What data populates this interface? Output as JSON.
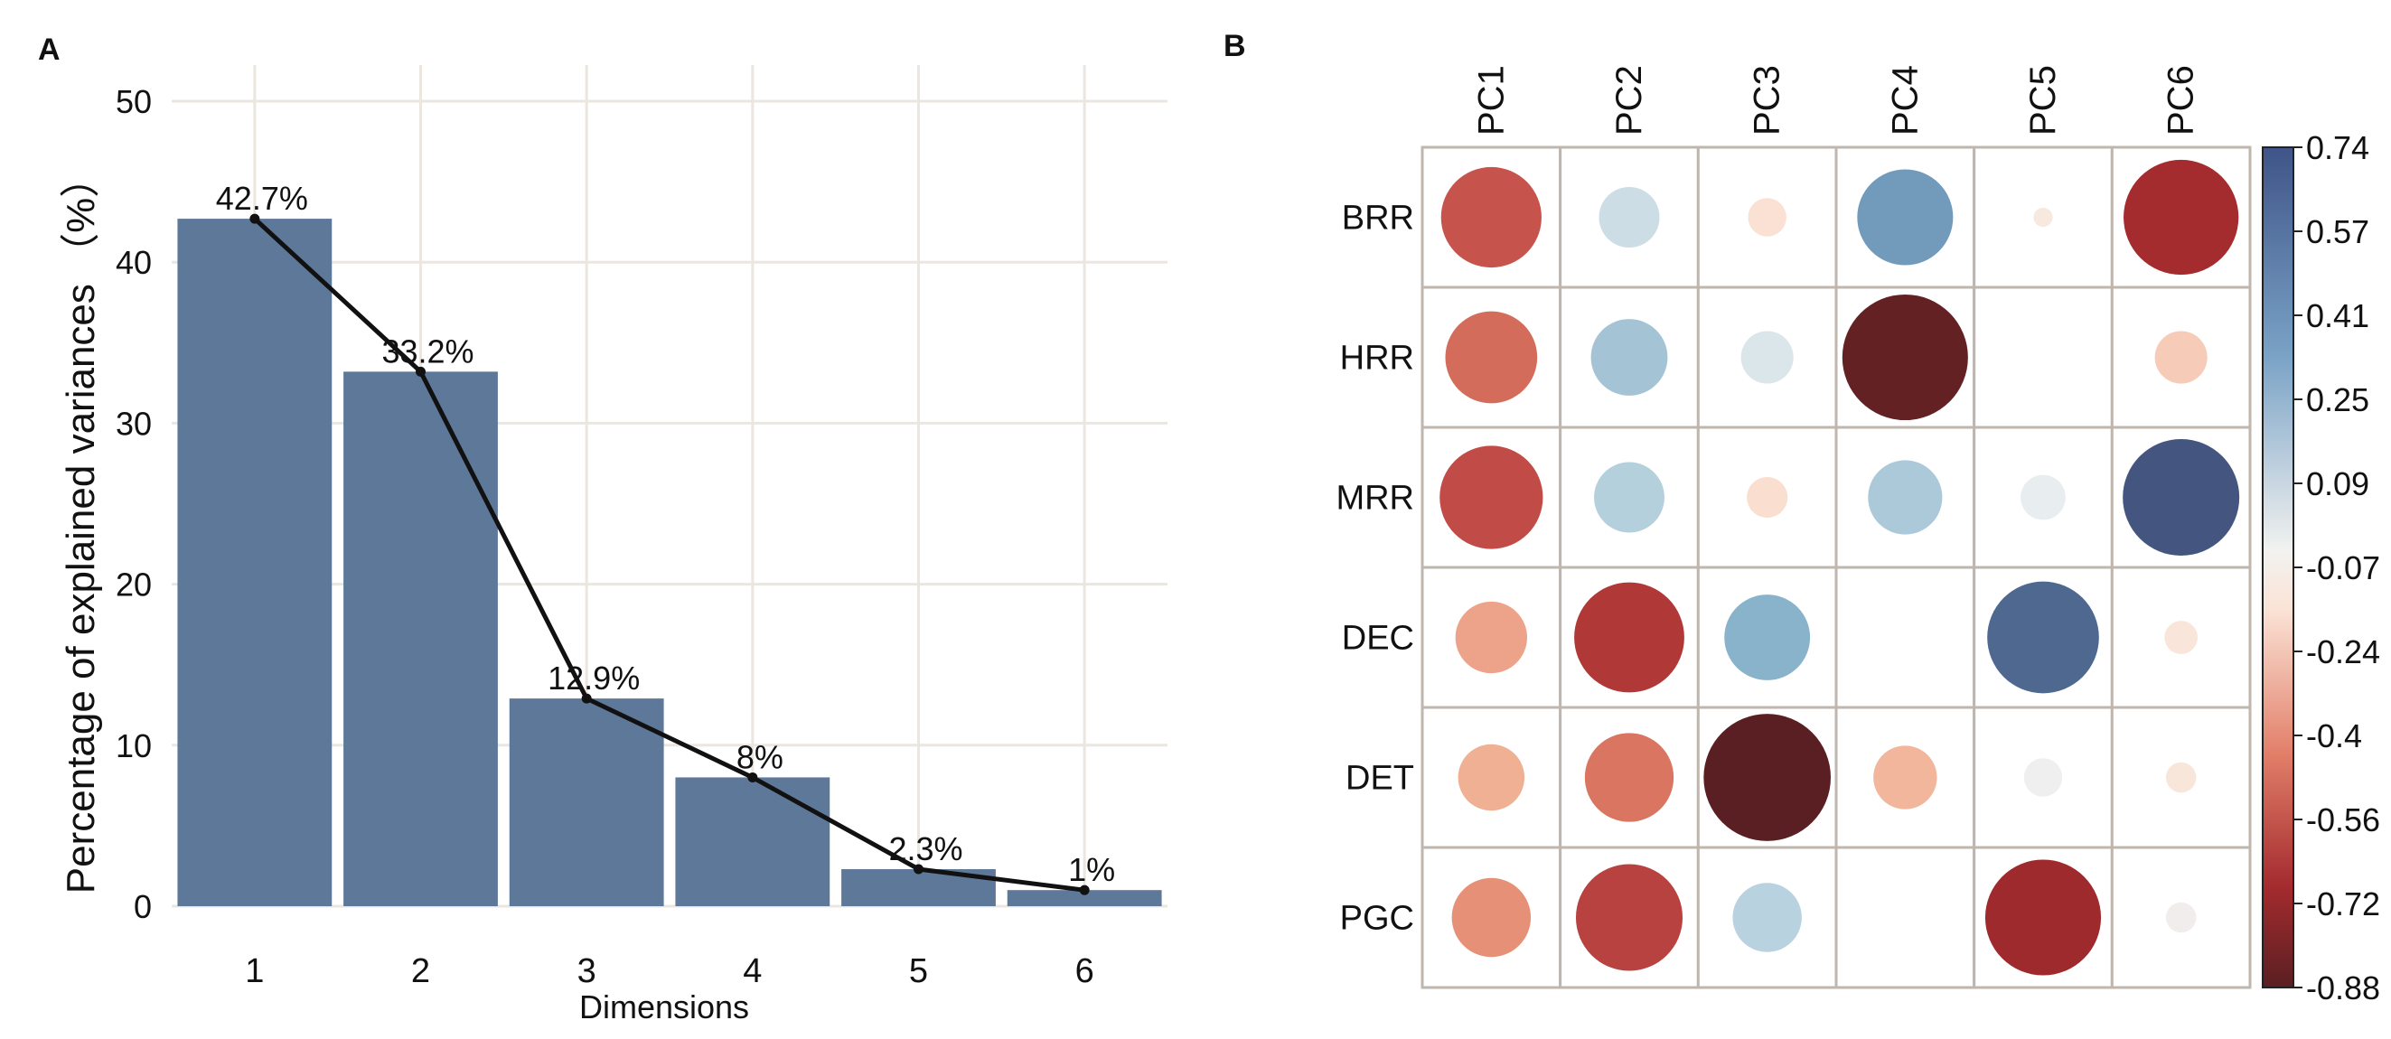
{
  "panels": {
    "a_label": "A",
    "b_label": "B"
  },
  "chart_data": [
    {
      "type": "bar",
      "panel": "A",
      "categories": [
        "1",
        "2",
        "3",
        "4",
        "5",
        "6"
      ],
      "values": [
        42.7,
        33.2,
        12.9,
        8.0,
        2.3,
        1.0
      ],
      "data_labels": [
        "42.7%",
        "33.2%",
        "12.9%",
        "8%",
        "2.3%",
        "1%"
      ],
      "line_overlay": true,
      "xlabel": "Dimensions",
      "ylabel": "Percentage of explained variances （%）",
      "yticks": [
        "0",
        "10",
        "20",
        "30",
        "40",
        "50"
      ],
      "ylim": [
        0,
        50
      ],
      "grid": true,
      "colors": {
        "bar": "#5e7899",
        "line": "#111111",
        "grid": "#ebe6df"
      }
    },
    {
      "type": "heatmap",
      "panel": "B",
      "style": "circle-correlation",
      "columns": [
        "PC1",
        "PC2",
        "PC3",
        "PC4",
        "PC5",
        "PC6"
      ],
      "rows": [
        "BRR",
        "HRR",
        "MRR",
        "DEC",
        "DET",
        "PGC"
      ],
      "values": [
        [
          -0.55,
          0.2,
          -0.08,
          0.5,
          -0.02,
          -0.72
        ],
        [
          -0.46,
          0.32,
          0.15,
          -0.86,
          0.0,
          -0.15
        ],
        [
          -0.58,
          0.27,
          -0.09,
          0.3,
          0.11,
          0.74
        ],
        [
          -0.28,
          -0.66,
          0.4,
          0.0,
          0.68,
          -0.06
        ],
        [
          -0.24,
          -0.43,
          -0.88,
          -0.22,
          0.08,
          -0.05
        ],
        [
          -0.34,
          -0.62,
          0.26,
          0.0,
          -0.73,
          0.05
        ]
      ],
      "colorbar_ticks": [
        "0.74",
        "0.57",
        "0.41",
        "0.25",
        "0.09",
        "-0.07",
        "-0.24",
        "-0.4",
        "-0.56",
        "-0.72",
        "-0.88"
      ],
      "colorbar_range": [
        -0.88,
        0.74
      ],
      "colors": {
        "cell_border": "#bfb6ae",
        "neg_strong": "#5a1f22",
        "pos_strong": "#44557f"
      }
    }
  ]
}
